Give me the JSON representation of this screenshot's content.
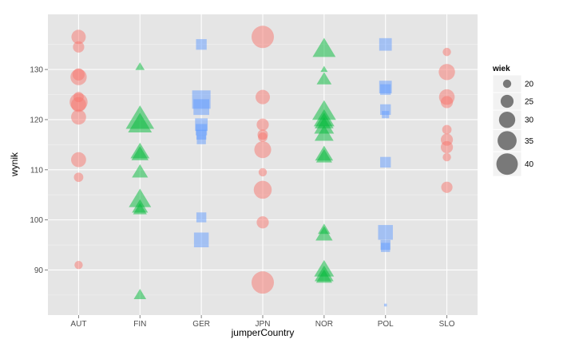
{
  "chart_data": {
    "type": "scatter",
    "xlabel": "jumperCountry",
    "ylabel": "wynik",
    "categories": [
      "AUT",
      "FIN",
      "GER",
      "JPN",
      "NOR",
      "POL",
      "SLO"
    ],
    "ylim": [
      81,
      141
    ],
    "yticks": [
      90,
      100,
      110,
      120,
      130
    ],
    "grid": true,
    "size_legend": {
      "title": "wiek",
      "values": [
        20,
        25,
        30,
        35,
        40
      ],
      "labels": [
        "20",
        "25",
        "30",
        "35",
        "40"
      ],
      "placement": "right"
    },
    "colors": {
      "AUT": "#F8766D",
      "FIN": "#00BA38",
      "GER": "#619CFF",
      "JPN": "#F8766D",
      "NOR": "#00BA38",
      "POL": "#619CFF",
      "SLO": "#F8766D"
    },
    "shapes": {
      "AUT": "circle",
      "FIN": "triangle",
      "GER": "square",
      "JPN": "circle",
      "NOR": "triangle",
      "POL": "square",
      "SLO": "circle"
    },
    "points": [
      {
        "x": "AUT",
        "y": 136.5,
        "age": 27
      },
      {
        "x": "AUT",
        "y": 134.5,
        "age": 23
      },
      {
        "x": "AUT",
        "y": 129,
        "age": 24
      },
      {
        "x": "AUT",
        "y": 128.5,
        "age": 30
      },
      {
        "x": "AUT",
        "y": 124.5,
        "age": 22
      },
      {
        "x": "AUT",
        "y": 123.5,
        "age": 33
      },
      {
        "x": "AUT",
        "y": 123,
        "age": 28
      },
      {
        "x": "AUT",
        "y": 120.5,
        "age": 28
      },
      {
        "x": "AUT",
        "y": 112,
        "age": 28
      },
      {
        "x": "AUT",
        "y": 108.5,
        "age": 21
      },
      {
        "x": "AUT",
        "y": 91,
        "age": 20
      },
      {
        "x": "FIN",
        "y": 130.5,
        "age": 19
      },
      {
        "x": "FIN",
        "y": 120,
        "age": 40
      },
      {
        "x": "FIN",
        "y": 119,
        "age": 33
      },
      {
        "x": "FIN",
        "y": 113.5,
        "age": 27
      },
      {
        "x": "FIN",
        "y": 113,
        "age": 25
      },
      {
        "x": "FIN",
        "y": 109.5,
        "age": 24
      },
      {
        "x": "FIN",
        "y": 104,
        "age": 31
      },
      {
        "x": "FIN",
        "y": 102.5,
        "age": 24
      },
      {
        "x": "FIN",
        "y": 102,
        "age": 22
      },
      {
        "x": "FIN",
        "y": 85,
        "age": 21
      },
      {
        "x": "GER",
        "y": 135,
        "age": 24
      },
      {
        "x": "GER",
        "y": 124,
        "age": 39
      },
      {
        "x": "GER",
        "y": 122.5,
        "age": 33
      },
      {
        "x": "GER",
        "y": 119,
        "age": 27
      },
      {
        "x": "GER",
        "y": 118,
        "age": 25
      },
      {
        "x": "GER",
        "y": 117,
        "age": 23
      },
      {
        "x": "GER",
        "y": 116,
        "age": 22
      },
      {
        "x": "GER",
        "y": 100.5,
        "age": 23
      },
      {
        "x": "GER",
        "y": 96,
        "age": 31
      },
      {
        "x": "JPN",
        "y": 136.5,
        "age": 42
      },
      {
        "x": "JPN",
        "y": 124.5,
        "age": 27
      },
      {
        "x": "JPN",
        "y": 119,
        "age": 24
      },
      {
        "x": "JPN",
        "y": 117,
        "age": 22
      },
      {
        "x": "JPN",
        "y": 116.5,
        "age": 21
      },
      {
        "x": "JPN",
        "y": 114,
        "age": 31
      },
      {
        "x": "JPN",
        "y": 109.5,
        "age": 20
      },
      {
        "x": "JPN",
        "y": 106,
        "age": 33
      },
      {
        "x": "JPN",
        "y": 99.5,
        "age": 24
      },
      {
        "x": "JPN",
        "y": 87.5,
        "age": 42
      },
      {
        "x": "NOR",
        "y": 134,
        "age": 32
      },
      {
        "x": "NOR",
        "y": 130,
        "age": 18
      },
      {
        "x": "NOR",
        "y": 128,
        "age": 23
      },
      {
        "x": "NOR",
        "y": 121.5,
        "age": 33
      },
      {
        "x": "NOR",
        "y": 120,
        "age": 29
      },
      {
        "x": "NOR",
        "y": 119.5,
        "age": 27
      },
      {
        "x": "NOR",
        "y": 118.5,
        "age": 28
      },
      {
        "x": "NOR",
        "y": 117,
        "age": 27
      },
      {
        "x": "NOR",
        "y": 113,
        "age": 26
      },
      {
        "x": "NOR",
        "y": 112.5,
        "age": 24
      },
      {
        "x": "NOR",
        "y": 98,
        "age": 21
      },
      {
        "x": "NOR",
        "y": 97,
        "age": 25
      },
      {
        "x": "NOR",
        "y": 90,
        "age": 28
      },
      {
        "x": "NOR",
        "y": 89,
        "age": 27
      },
      {
        "x": "NOR",
        "y": 88.5,
        "age": 24
      },
      {
        "x": "POL",
        "y": 135,
        "age": 27
      },
      {
        "x": "POL",
        "y": 126.5,
        "age": 27
      },
      {
        "x": "POL",
        "y": 126,
        "age": 24
      },
      {
        "x": "POL",
        "y": 122,
        "age": 24
      },
      {
        "x": "POL",
        "y": 121,
        "age": 20
      },
      {
        "x": "POL",
        "y": 111.5,
        "age": 24
      },
      {
        "x": "POL",
        "y": 97.5,
        "age": 31
      },
      {
        "x": "POL",
        "y": 95,
        "age": 23
      },
      {
        "x": "POL",
        "y": 94.5,
        "age": 22
      },
      {
        "x": "POL",
        "y": 83,
        "age": 17
      },
      {
        "x": "SLO",
        "y": 133.5,
        "age": 20
      },
      {
        "x": "SLO",
        "y": 129.5,
        "age": 30
      },
      {
        "x": "SLO",
        "y": 124.5,
        "age": 29
      },
      {
        "x": "SLO",
        "y": 123.5,
        "age": 24
      },
      {
        "x": "SLO",
        "y": 118,
        "age": 21
      },
      {
        "x": "SLO",
        "y": 116,
        "age": 24
      },
      {
        "x": "SLO",
        "y": 114.5,
        "age": 24
      },
      {
        "x": "SLO",
        "y": 112.5,
        "age": 20
      },
      {
        "x": "SLO",
        "y": 106.5,
        "age": 23
      }
    ]
  }
}
